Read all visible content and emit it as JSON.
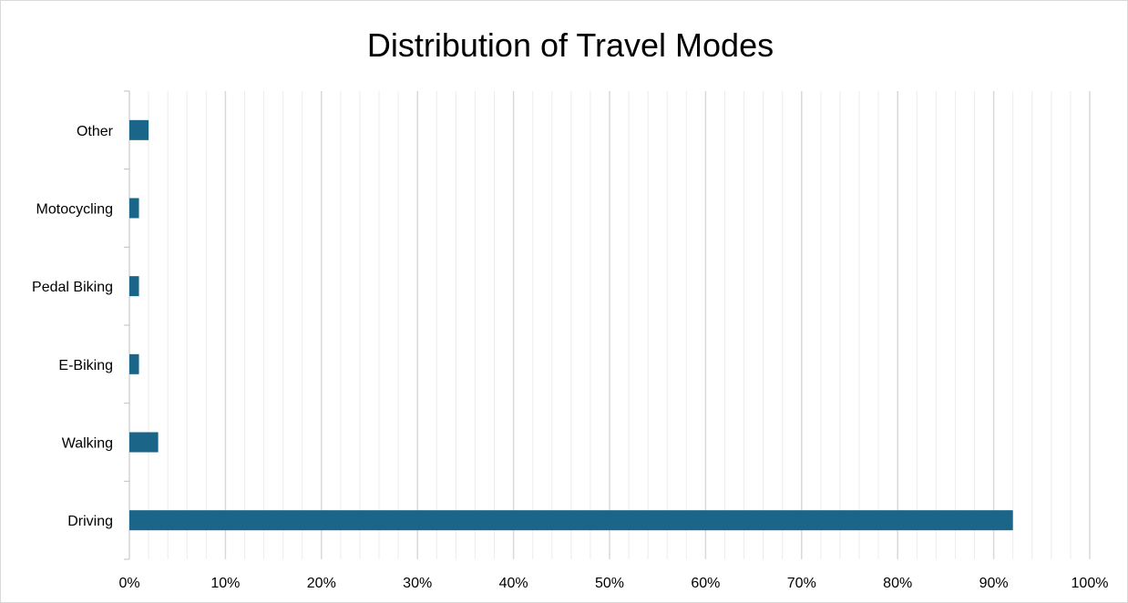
{
  "chart_data": {
    "type": "bar",
    "orientation": "horizontal",
    "title": "Distribution of Travel Modes",
    "xlabel": "",
    "ylabel": "",
    "categories": [
      "Driving",
      "Walking",
      "E-Biking",
      "Pedal Biking",
      "Motocycling",
      "Other"
    ],
    "values": [
      92,
      3,
      1,
      1,
      1,
      2
    ],
    "xlim": [
      0,
      100
    ],
    "x_ticks": [
      0,
      10,
      20,
      30,
      40,
      50,
      60,
      70,
      80,
      90,
      100
    ],
    "tick_labels": [
      "0%",
      "10%",
      "20%",
      "30%",
      "40%",
      "50%",
      "60%",
      "70%",
      "80%",
      "90%",
      "100%"
    ],
    "grid": {
      "major": true,
      "minor": true
    },
    "legend": "none",
    "colors": {
      "bar": "#1b6589",
      "major_grid": "#d9d9d9",
      "minor_grid": "#ececec",
      "axis": "#bfbfbf"
    }
  }
}
